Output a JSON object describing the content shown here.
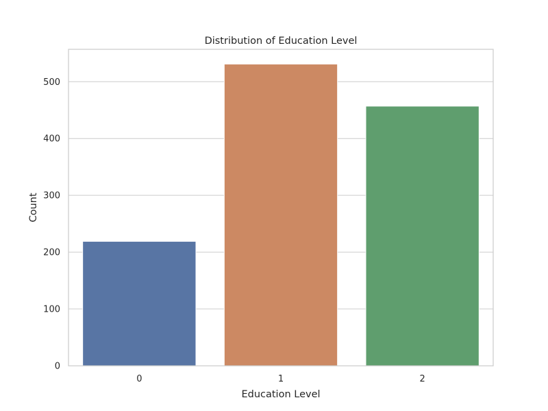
{
  "chart_data": {
    "type": "bar",
    "title": "Distribution of Education Level",
    "xlabel": "Education Level",
    "ylabel": "Count",
    "categories": [
      "0",
      "1",
      "2"
    ],
    "values": [
      219,
      531,
      457
    ],
    "ylim": [
      0,
      557
    ],
    "yticks": [
      0,
      100,
      200,
      300,
      400,
      500
    ],
    "grid": true,
    "legend": "none",
    "colors": [
      "#5875a4",
      "#cc8963",
      "#5f9e6e"
    ]
  }
}
